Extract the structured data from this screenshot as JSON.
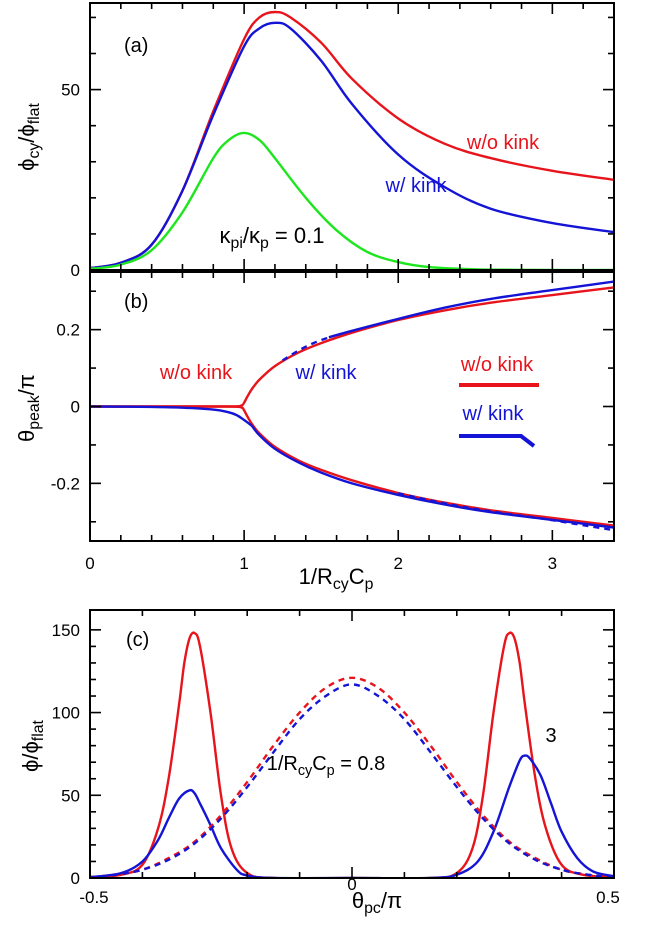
{
  "chart_data": [
    {
      "type": "line",
      "panel_label": "(a)",
      "ylabel": "ϕcy/ϕflat",
      "xlim": [
        0,
        3.4
      ],
      "ylim": [
        0,
        74
      ],
      "ytick_labels": [
        "0",
        "50"
      ],
      "annotations": [
        "w/o kink",
        "w/ kink",
        "κpi/κp = 0.1"
      ],
      "colors": {
        "w/o kink": "#e8141c",
        "w/ kink": "#1414d6",
        "κpi/κp = 0.1": "#1ee61e"
      },
      "series": [
        {
          "name": "w/o kink",
          "x": [
            0,
            0.2,
            0.4,
            0.6,
            0.8,
            1.0,
            1.1,
            1.2,
            1.3,
            1.5,
            1.7,
            2.0,
            2.3,
            2.6,
            3.0,
            3.4
          ],
          "y": [
            0.5,
            2,
            7,
            22,
            44,
            64,
            70,
            71.5,
            70,
            63,
            53,
            42,
            35,
            31,
            27.5,
            25
          ]
        },
        {
          "name": "w/ kink",
          "x": [
            0,
            0.2,
            0.4,
            0.6,
            0.8,
            1.0,
            1.1,
            1.2,
            1.3,
            1.5,
            1.7,
            2.0,
            2.3,
            2.6,
            3.0,
            3.4
          ],
          "y": [
            0.5,
            2,
            7,
            22,
            43,
            62,
            67,
            68.5,
            67,
            58,
            46,
            32,
            23,
            17,
            13,
            10.5
          ]
        },
        {
          "name": "κpi/κp = 0.1",
          "x": [
            0,
            0.2,
            0.4,
            0.6,
            0.8,
            0.9,
            1.0,
            1.1,
            1.2,
            1.4,
            1.6,
            1.8,
            2.0,
            2.2,
            2.5,
            3.0,
            3.4
          ],
          "y": [
            0.3,
            1.5,
            5.5,
            16,
            31,
            36,
            38,
            36,
            31,
            20,
            11,
            5,
            2.2,
            0.8,
            0.2,
            0,
            0
          ]
        }
      ]
    },
    {
      "type": "line",
      "panel_label": "(b)",
      "ylabel": "θpeak/π",
      "xlabel": "1/RcyCp",
      "xlim": [
        0,
        3.4
      ],
      "ylim": [
        -0.35,
        0.35
      ],
      "xtick_labels": [
        "0",
        "1",
        "2",
        "3"
      ],
      "ytick_labels": [
        "-0.2",
        "0",
        "0.2"
      ],
      "annotations": [
        "w/o kink",
        "w/ kink"
      ],
      "legend": [
        {
          "label": "w/o kink",
          "color": "#e8141c"
        },
        {
          "label": "w/ kink",
          "color": "#1414d6"
        }
      ],
      "legend_placement": "right",
      "series": [
        {
          "name": "w/o kink (upper)",
          "x": [
            0,
            0.5,
            0.9,
            0.98,
            1.0,
            1.02,
            1.05,
            1.1,
            1.2,
            1.35,
            1.5,
            1.7,
            2.0,
            2.3,
            2.6,
            3.0,
            3.4
          ],
          "y": [
            0,
            0,
            0,
            0.002,
            0.01,
            0.025,
            0.045,
            0.07,
            0.105,
            0.14,
            0.165,
            0.192,
            0.225,
            0.25,
            0.27,
            0.29,
            0.31
          ]
        },
        {
          "name": "w/o kink (lower)",
          "x": [
            0,
            0.5,
            0.9,
            0.98,
            1.0,
            1.02,
            1.05,
            1.1,
            1.2,
            1.35,
            1.5,
            1.7,
            2.0,
            2.3,
            2.6,
            3.0,
            3.4
          ],
          "y": [
            0,
            0,
            0,
            -0.002,
            -0.01,
            -0.025,
            -0.045,
            -0.07,
            -0.105,
            -0.14,
            -0.165,
            -0.192,
            -0.225,
            -0.25,
            -0.27,
            -0.29,
            -0.31
          ]
        },
        {
          "name": "w/ kink (below 1)",
          "x": [
            0,
            0.4,
            0.6,
            0.8,
            0.9,
            0.95,
            1.0,
            1.05
          ],
          "y": [
            0,
            -0.001,
            -0.003,
            -0.008,
            -0.015,
            -0.022,
            -0.035,
            -0.05
          ]
        },
        {
          "name": "w/ kink (lower)",
          "x": [
            1.05,
            1.1,
            1.2,
            1.35,
            1.5,
            1.7,
            2.0,
            2.3,
            2.6,
            3.0,
            3.4
          ],
          "y": [
            -0.05,
            -0.075,
            -0.11,
            -0.145,
            -0.172,
            -0.2,
            -0.23,
            -0.255,
            -0.275,
            -0.295,
            -0.315
          ]
        },
        {
          "name": "w/ kink (upper)",
          "x": [
            1.55,
            1.7,
            2.0,
            2.3,
            2.6,
            3.0,
            3.4
          ],
          "y": [
            0.18,
            0.197,
            0.228,
            0.257,
            0.28,
            0.303,
            0.325
          ]
        },
        {
          "name": "w/ kink (dashed upper)",
          "style": "dashed",
          "x": [
            1.25,
            1.35,
            1.45,
            1.55
          ],
          "y": [
            0.12,
            0.145,
            0.165,
            0.18
          ]
        },
        {
          "name": "w/ kink (dashed lower)",
          "style": "dashed",
          "x": [
            2.0,
            2.3,
            2.6,
            3.0,
            3.4
          ],
          "y": [
            -0.226,
            -0.252,
            -0.273,
            -0.296,
            -0.322
          ]
        }
      ]
    },
    {
      "type": "line",
      "panel_label": "(c)",
      "ylabel": "ϕ/ϕflat",
      "xlabel": "θpc/π",
      "xlim": [
        -0.5,
        0.5
      ],
      "ylim": [
        0,
        162
      ],
      "xtick_labels": [
        "-0.5",
        "0",
        "0.5"
      ],
      "ytick_labels": [
        "0",
        "50",
        "100",
        "150"
      ],
      "annotations": [
        "1/RcyCp = 0.8",
        "3"
      ],
      "series": [
        {
          "name": "w/o kink, 1/RcyCp = 3",
          "x": [
            -0.5,
            -0.44,
            -0.4,
            -0.37,
            -0.35,
            -0.33,
            -0.32,
            -0.31,
            -0.3,
            -0.29,
            -0.27,
            -0.25,
            -0.23,
            -0.2,
            -0.15,
            0,
            0.15,
            0.2,
            0.23,
            0.25,
            0.27,
            0.29,
            0.3,
            0.31,
            0.32,
            0.33,
            0.35,
            0.37,
            0.4,
            0.44,
            0.5
          ],
          "y": [
            0.5,
            2,
            8,
            30,
            60,
            105,
            130,
            145,
            148,
            140,
            100,
            50,
            18,
            3,
            0,
            0,
            0,
            3,
            18,
            50,
            100,
            140,
            148,
            145,
            130,
            105,
            60,
            30,
            8,
            2,
            0.5
          ]
        },
        {
          "name": "w/ kink, 1/RcyCp = 3",
          "x": [
            -0.5,
            -0.44,
            -0.4,
            -0.37,
            -0.35,
            -0.33,
            -0.31,
            -0.3,
            -0.29,
            -0.27,
            -0.25,
            -0.22,
            -0.2,
            -0.15,
            0,
            0.15,
            0.2,
            0.24,
            0.27,
            0.3,
            0.32,
            0.33,
            0.34,
            0.36,
            0.38,
            0.4,
            0.43,
            0.46,
            0.5
          ],
          "y": [
            0.5,
            3,
            10,
            23,
            36,
            48,
            53,
            51,
            45,
            32,
            18,
            5,
            1.5,
            0,
            0,
            0,
            2,
            10,
            28,
            55,
            71,
            74,
            72,
            62,
            45,
            28,
            12,
            4,
            1
          ]
        },
        {
          "name": "w/o kink, 1/RcyCp = 0.8",
          "style": "dashed",
          "x": [
            -0.5,
            -0.45,
            -0.4,
            -0.35,
            -0.3,
            -0.25,
            -0.2,
            -0.15,
            -0.1,
            -0.05,
            0,
            0.05,
            0.1,
            0.15,
            0.2,
            0.25,
            0.3,
            0.35,
            0.4,
            0.45,
            0.5
          ],
          "y": [
            0.5,
            2,
            5,
            12,
            22,
            38,
            58,
            80,
            100,
            115,
            121,
            115,
            100,
            80,
            58,
            38,
            22,
            12,
            5,
            2,
            0.5
          ]
        },
        {
          "name": "w/ kink, 1/RcyCp = 0.8",
          "style": "dashed",
          "x": [
            -0.5,
            -0.45,
            -0.4,
            -0.35,
            -0.3,
            -0.25,
            -0.2,
            -0.15,
            -0.1,
            -0.05,
            0,
            0.05,
            0.1,
            0.15,
            0.2,
            0.25,
            0.3,
            0.35,
            0.4,
            0.45,
            0.5
          ],
          "y": [
            0.5,
            2,
            5,
            11,
            21,
            36,
            55,
            76,
            96,
            110,
            117,
            110,
            96,
            76,
            55,
            36,
            21,
            11,
            5,
            2,
            0.5
          ]
        }
      ]
    }
  ]
}
